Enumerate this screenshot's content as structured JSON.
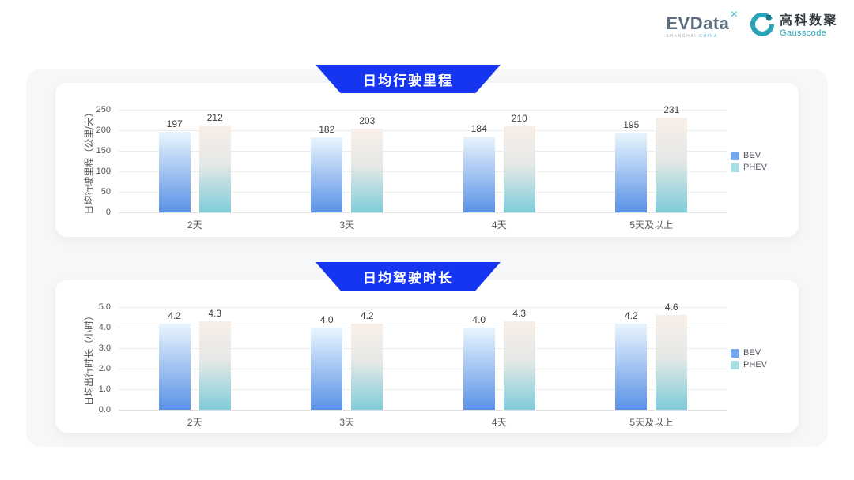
{
  "header": {
    "evdata": {
      "name": "EVData",
      "sup": "✕",
      "sub_left": "SHANGHAI",
      "sub_right": "CHINA"
    },
    "gausscode": {
      "cn": "高科数聚",
      "en": "Gausscode"
    }
  },
  "colors": {
    "banner_blue": "#1535f0",
    "bev_top": "#e9f5fd",
    "bev_bottom": "#5b92e6",
    "phev_top": "#f9efe8",
    "phev_mid": "#e4e8e6",
    "phev_bottom": "#7fccd9",
    "legend_bev": "#74a7eb",
    "legend_phev": "#a9dde4"
  },
  "chart_data": [
    {
      "type": "bar",
      "title": "日均行驶里程",
      "ylabel": "日均行驶里程（公里/天）",
      "xlabel": "",
      "categories": [
        "2天",
        "3天",
        "4天",
        "5天及以上"
      ],
      "series": [
        {
          "name": "BEV",
          "values": [
            197,
            182,
            184,
            195
          ],
          "labels": [
            "197",
            "182",
            "184",
            "195"
          ]
        },
        {
          "name": "PHEV",
          "values": [
            212,
            203,
            210,
            231
          ],
          "labels": [
            "212",
            "203",
            "210",
            "231"
          ]
        }
      ],
      "ylim": [
        0,
        250
      ],
      "yticks": [
        "0",
        "50",
        "100",
        "150",
        "200",
        "250"
      ],
      "grid": true,
      "legend_position": "right",
      "legend": [
        "BEV",
        "PHEV"
      ]
    },
    {
      "type": "bar",
      "title": "日均驾驶时长",
      "ylabel": "日均出行时长（小时）",
      "xlabel": "",
      "categories": [
        "2天",
        "3天",
        "4天",
        "5天及以上"
      ],
      "series": [
        {
          "name": "BEV",
          "values": [
            4.2,
            4.0,
            4.0,
            4.2
          ],
          "labels": [
            "4.2",
            "4.0",
            "4.0",
            "4.2"
          ]
        },
        {
          "name": "PHEV",
          "values": [
            4.3,
            4.2,
            4.3,
            4.6
          ],
          "labels": [
            "4.3",
            "4.2",
            "4.3",
            "4.6"
          ]
        }
      ],
      "ylim": [
        0,
        5
      ],
      "yticks": [
        "0.0",
        "1.0",
        "2.0",
        "3.0",
        "4.0",
        "5.0"
      ],
      "grid": true,
      "legend_position": "right",
      "legend": [
        "BEV",
        "PHEV"
      ]
    }
  ]
}
